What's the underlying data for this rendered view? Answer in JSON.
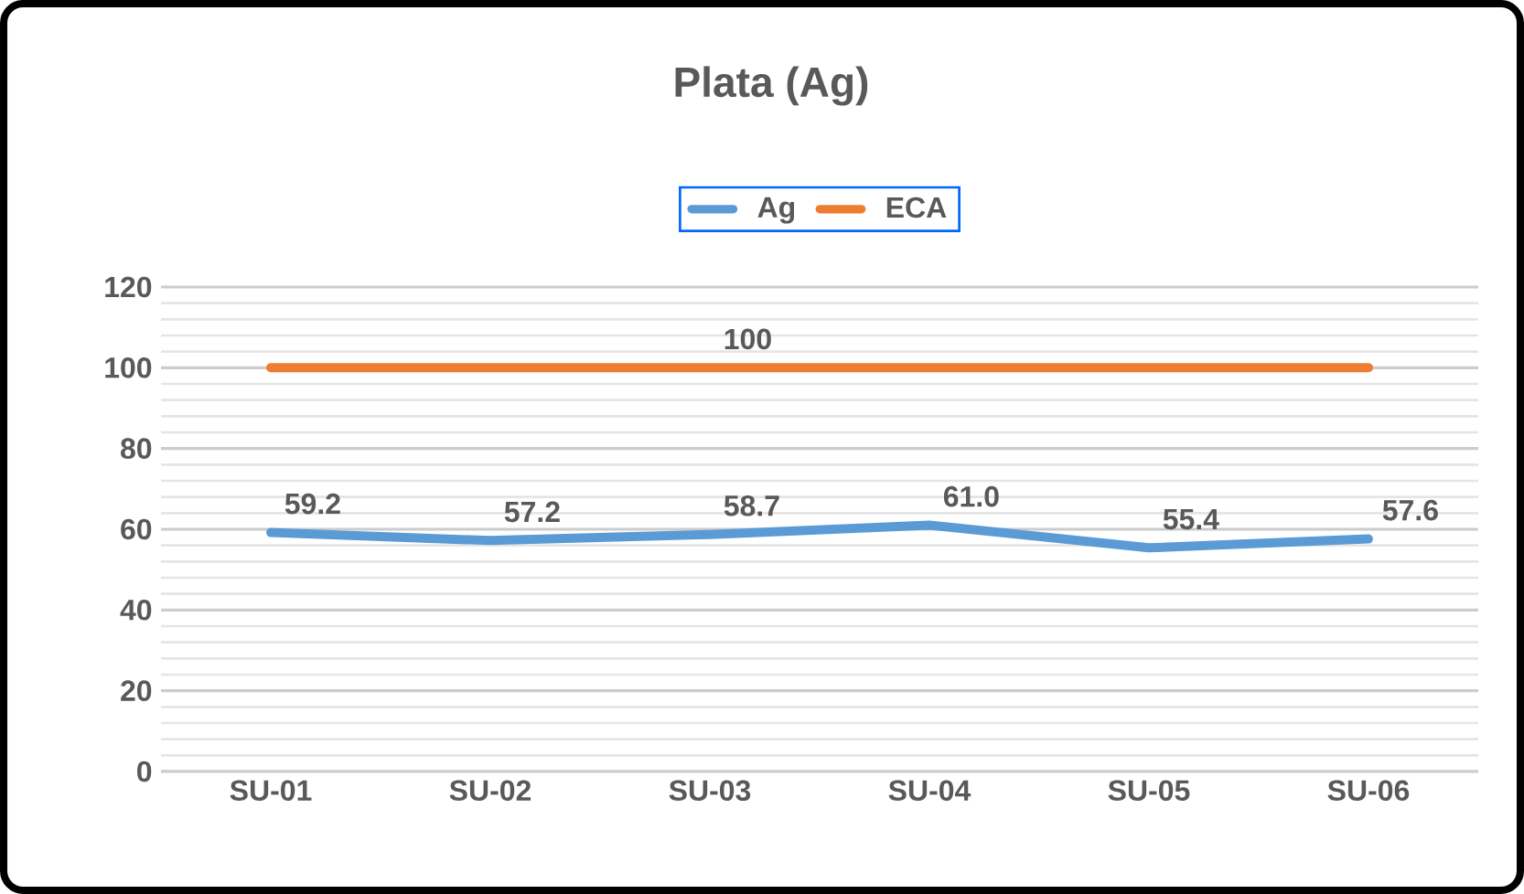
{
  "chart_data": {
    "type": "line",
    "title": "Plata (Ag)",
    "categories": [
      "SU-01",
      "SU-02",
      "SU-03",
      "SU-04",
      "SU-05",
      "SU-06"
    ],
    "series": [
      {
        "name": "Ag",
        "color": "#5b9bd5",
        "values": [
          59.2,
          57.2,
          58.7,
          61.0,
          55.4,
          57.6
        ],
        "value_labels": [
          "59.2",
          "57.2",
          "58.7",
          "61.0",
          "55.4",
          "57.6"
        ]
      },
      {
        "name": "ECA",
        "color": "#ed7d31",
        "values": [
          100,
          100,
          100,
          100,
          100,
          100
        ],
        "value_labels": [
          null,
          null,
          "100",
          null,
          null,
          null
        ]
      }
    ],
    "ylim": [
      0,
      120
    ],
    "yticks": [
      0,
      20,
      40,
      60,
      80,
      100,
      120
    ],
    "grid": "y",
    "legend": "top",
    "marker": "none",
    "line_style": "solid"
  }
}
